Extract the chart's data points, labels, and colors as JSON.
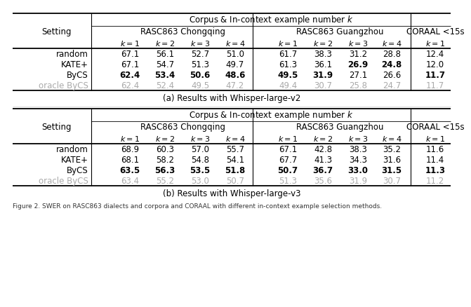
{
  "table_a": {
    "caption": "(a) Results with Whisper-large-v2",
    "rows": [
      {
        "setting": "random",
        "chongqing": [
          "67.1",
          "56.1",
          "52.7",
          "51.0"
        ],
        "guangzhou": [
          "61.7",
          "38.3",
          "31.2",
          "28.8"
        ],
        "coraal": "12.4",
        "bold_chongqing": [],
        "bold_guangzhou": [],
        "bold_coraal": false,
        "gray": false
      },
      {
        "setting": "KATE+",
        "chongqing": [
          "67.1",
          "54.7",
          "51.3",
          "49.7"
        ],
        "guangzhou": [
          "61.3",
          "36.1",
          "26.9",
          "24.8"
        ],
        "coraal": "12.0",
        "bold_chongqing": [],
        "bold_guangzhou": [
          2,
          3
        ],
        "bold_coraal": false,
        "gray": false
      },
      {
        "setting": "ByCS",
        "chongqing": [
          "62.4",
          "53.4",
          "50.6",
          "48.6"
        ],
        "guangzhou": [
          "49.5",
          "31.9",
          "27.1",
          "26.6"
        ],
        "coraal": "11.7",
        "bold_chongqing": [
          0,
          1,
          2,
          3
        ],
        "bold_guangzhou": [
          0,
          1
        ],
        "bold_coraal": true,
        "gray": false
      },
      {
        "setting": "oracle ByCS",
        "chongqing": [
          "62.4",
          "52.4",
          "49.5",
          "47.2"
        ],
        "guangzhou": [
          "49.4",
          "30.7",
          "25.8",
          "24.7"
        ],
        "coraal": "11.7",
        "bold_chongqing": [],
        "bold_guangzhou": [],
        "bold_coraal": false,
        "gray": true
      }
    ]
  },
  "table_b": {
    "caption": "(b) Results with Whisper-large-v3",
    "rows": [
      {
        "setting": "random",
        "chongqing": [
          "68.9",
          "60.3",
          "57.0",
          "55.7"
        ],
        "guangzhou": [
          "67.1",
          "42.8",
          "38.3",
          "35.2"
        ],
        "coraal": "11.6",
        "bold_chongqing": [],
        "bold_guangzhou": [],
        "bold_coraal": false,
        "gray": false
      },
      {
        "setting": "KATE+",
        "chongqing": [
          "68.1",
          "58.2",
          "54.8",
          "54.1"
        ],
        "guangzhou": [
          "67.7",
          "41.3",
          "34.3",
          "31.6"
        ],
        "coraal": "11.4",
        "bold_chongqing": [],
        "bold_guangzhou": [],
        "bold_coraal": false,
        "gray": false
      },
      {
        "setting": "ByCS",
        "chongqing": [
          "63.5",
          "56.3",
          "53.5",
          "51.8"
        ],
        "guangzhou": [
          "50.7",
          "36.7",
          "33.0",
          "31.5"
        ],
        "coraal": "11.3",
        "bold_chongqing": [
          0,
          1,
          2,
          3
        ],
        "bold_guangzhou": [
          0,
          1,
          2,
          3
        ],
        "bold_coraal": true,
        "gray": false
      },
      {
        "setting": "oracle ByCS",
        "chongqing": [
          "63.4",
          "55.2",
          "53.0",
          "50.7"
        ],
        "guangzhou": [
          "51.3",
          "35.6",
          "31.9",
          "30.7"
        ],
        "coraal": "11.2",
        "bold_chongqing": [],
        "bold_guangzhou": [],
        "bold_coraal": false,
        "gray": true
      }
    ]
  },
  "header_top": "Corpus & In-context example number $k$",
  "header_chongqing": "RASC863 Chongqing",
  "header_guangzhou": "RASC863 Guangzhou",
  "header_coraal": "CORAAL <15s",
  "header_setting": "Setting",
  "k_labels": [
    "$k=1$",
    "$k=2$",
    "$k=3$",
    "$k=4$"
  ],
  "k_label_coraal": "$k=1$",
  "footnote": "Figure 2. SWER on RASC863 dialects and corpora and CORAAL with different in-context example selection methods.",
  "bg_color": "#ffffff",
  "text_color": "#000000",
  "gray_color": "#aaaaaa"
}
